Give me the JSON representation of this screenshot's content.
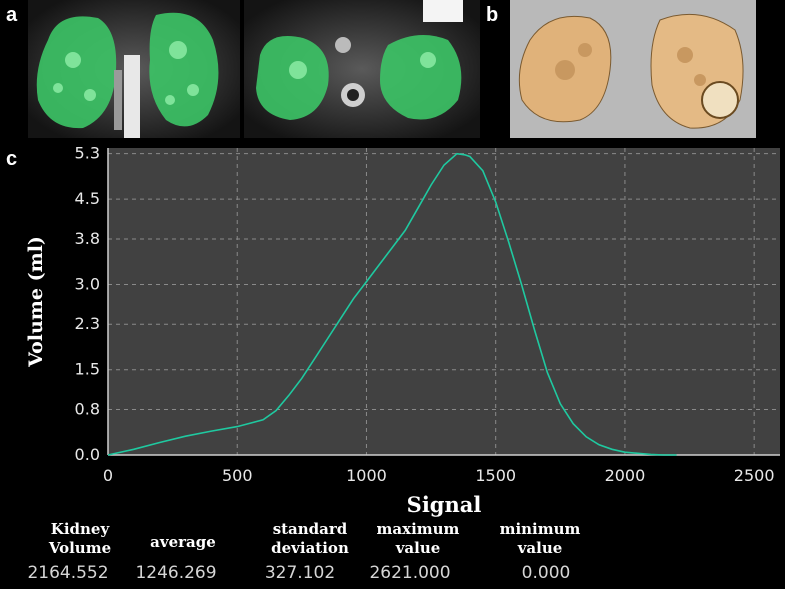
{
  "panels": {
    "a": "a",
    "b": "b",
    "c": "c"
  },
  "chart_data": {
    "type": "line",
    "xlabel": "Signal",
    "ylabel": "Volume (ml)",
    "xlim": [
      0,
      2600
    ],
    "ylim": [
      0,
      5.4
    ],
    "x_ticks": [
      0,
      500,
      1000,
      1500,
      2000,
      2500
    ],
    "y_ticks": [
      "0.0",
      "0.8",
      "1.5",
      "2.3",
      "3.0",
      "3.8",
      "4.5",
      "5.3"
    ],
    "grid": true,
    "series": [
      {
        "color": "#1fc9a0",
        "x": [
          0,
          100,
          200,
          300,
          400,
          500,
          600,
          650,
          700,
          750,
          800,
          850,
          900,
          950,
          1000,
          1050,
          1100,
          1150,
          1200,
          1250,
          1300,
          1350,
          1380,
          1400,
          1450,
          1500,
          1550,
          1600,
          1650,
          1700,
          1750,
          1800,
          1850,
          1900,
          1950,
          2000,
          2050,
          2100,
          2150,
          2200
        ],
        "y": [
          0.0,
          0.1,
          0.22,
          0.33,
          0.42,
          0.5,
          0.62,
          0.78,
          1.05,
          1.35,
          1.7,
          2.05,
          2.4,
          2.75,
          3.05,
          3.35,
          3.65,
          3.95,
          4.35,
          4.75,
          5.1,
          5.3,
          5.28,
          5.25,
          5.0,
          4.45,
          3.75,
          3.0,
          2.2,
          1.45,
          0.9,
          0.55,
          0.32,
          0.18,
          0.1,
          0.05,
          0.03,
          0.01,
          0.0,
          0.0
        ]
      }
    ]
  },
  "stats": {
    "headers": [
      [
        "Kidney",
        "Volume"
      ],
      [
        "average"
      ],
      [
        "standard",
        "deviation"
      ],
      [
        "maximum",
        "value"
      ],
      [
        "minimum",
        "value"
      ]
    ],
    "values": [
      "2164.552",
      "1246.269",
      "327.102",
      "2621.000",
      "0.000"
    ]
  }
}
